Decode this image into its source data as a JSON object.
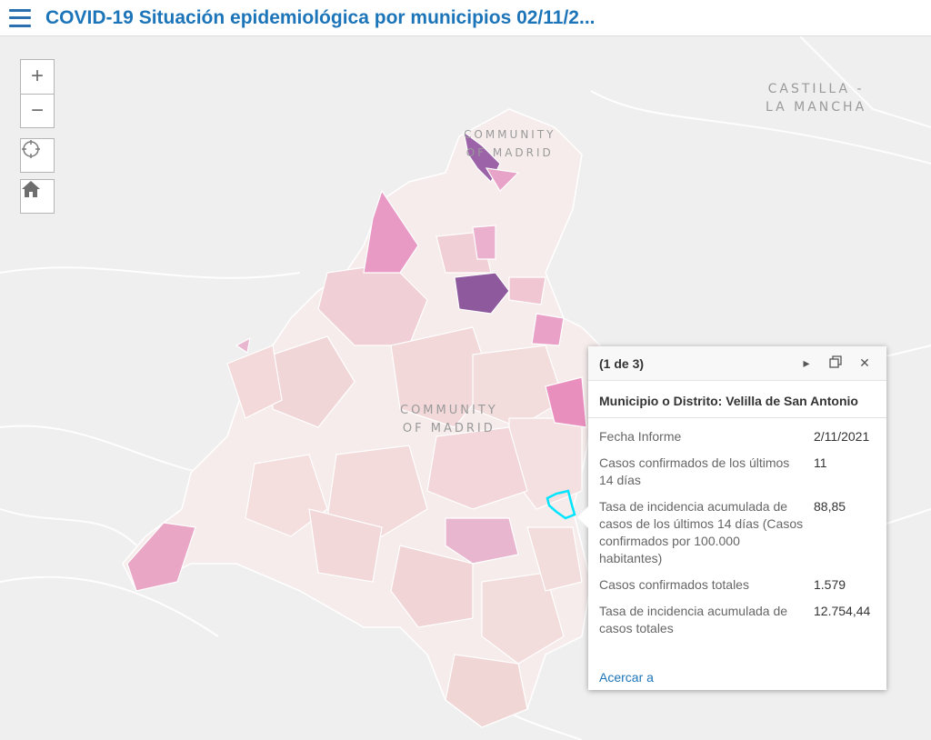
{
  "header": {
    "title": "COVID-19 Situación epidemiológica por municipios 02/11/2..."
  },
  "map_labels": {
    "region_east": "CASTILLA -\nLA MANCHA",
    "community_top": "COMMUNITY\nOF MADRID",
    "community_center": "COMMUNITY\nOF MADRID"
  },
  "controls": {
    "zoom_in": "+",
    "zoom_out": "−"
  },
  "popup": {
    "count": "(1 de 3)",
    "title": "Municipio o Distrito: Velilla de San Antonio",
    "rows": [
      {
        "key": "Fecha Informe",
        "value": "2/11/2021"
      },
      {
        "key": "Casos confirmados de los últimos 14 días",
        "value": "11"
      },
      {
        "key": "Tasa de incidencia acumulada de casos de los últimos 14 días (Casos confirmados por 100.000 habitantes)",
        "value": "88,85"
      },
      {
        "key": "Casos confirmados totales",
        "value": "1.579"
      },
      {
        "key": "Tasa de incidencia acumulada de casos totales",
        "value": "12.754,44"
      }
    ],
    "zoom_link": "Acercar a"
  },
  "colors": {
    "title": "#1d75b9",
    "background": "#efeff0",
    "region_light": "#f4e6e6",
    "region_pink": "#e9a7c8",
    "region_purple": "#8e5a9d",
    "highlight": "#00e5ff"
  }
}
